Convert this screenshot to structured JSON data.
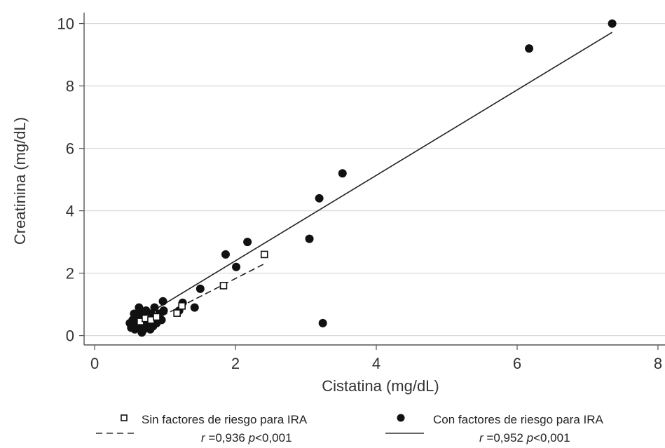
{
  "chart_data": {
    "type": "scatter",
    "xlabel": "Cistatina (mg/dL)",
    "ylabel": "Creatinina (mg/dL)",
    "xlim": [
      -0.15,
      8.1
    ],
    "ylim": [
      -0.3,
      10.35
    ],
    "x_ticks": [
      0,
      2,
      4,
      6,
      8
    ],
    "y_ticks": [
      0,
      2,
      4,
      6,
      8,
      10
    ],
    "grid": "horizontal",
    "legend_position": "bottom",
    "series": [
      {
        "name": "Sin factores de riesgo para IRA",
        "marker": "open-square",
        "points": [
          [
            1.17,
            0.72
          ],
          [
            1.24,
            0.95
          ],
          [
            1.83,
            1.6
          ],
          [
            2.41,
            2.6
          ],
          [
            0.65,
            0.45
          ],
          [
            0.72,
            0.55
          ],
          [
            0.8,
            0.5
          ],
          [
            0.88,
            0.6
          ]
        ],
        "fit_line": {
          "style": "dashed",
          "x": [
            0.95,
            2.41
          ],
          "y": [
            0.62,
            2.3
          ]
        },
        "stat_r": "r",
        "stat_r_value": " =0,936 ",
        "stat_p": "p",
        "stat_p_value": "<0,001"
      },
      {
        "name": "Con factores de riesgo para IRA",
        "marker": "filled-circle",
        "points": [
          [
            7.35,
            10.0
          ],
          [
            6.17,
            9.2
          ],
          [
            3.52,
            5.2
          ],
          [
            3.19,
            4.4
          ],
          [
            3.05,
            3.1
          ],
          [
            3.24,
            0.4
          ],
          [
            2.17,
            3.0
          ],
          [
            2.01,
            2.2
          ],
          [
            1.86,
            2.6
          ],
          [
            1.5,
            1.5
          ],
          [
            1.42,
            0.9
          ],
          [
            1.25,
            1.05
          ],
          [
            1.2,
            0.8
          ],
          [
            0.97,
            1.1
          ],
          [
            0.98,
            0.8
          ],
          [
            0.95,
            0.5
          ],
          [
            0.9,
            0.6
          ],
          [
            0.85,
            0.9
          ],
          [
            0.83,
            0.3
          ],
          [
            0.8,
            0.7
          ],
          [
            0.79,
            0.2
          ],
          [
            0.77,
            0.6
          ],
          [
            0.75,
            0.45
          ],
          [
            0.73,
            0.8
          ],
          [
            0.72,
            0.35
          ],
          [
            0.7,
            0.65
          ],
          [
            0.68,
            0.5
          ],
          [
            0.67,
            0.1
          ],
          [
            0.66,
            0.3
          ],
          [
            0.65,
            0.75
          ],
          [
            0.63,
            0.9
          ],
          [
            0.62,
            0.55
          ],
          [
            0.6,
            0.4
          ],
          [
            0.58,
            0.6
          ],
          [
            0.57,
            0.2
          ],
          [
            0.56,
            0.7
          ],
          [
            0.55,
            0.35
          ],
          [
            0.54,
            0.5
          ],
          [
            0.52,
            0.25
          ],
          [
            0.5,
            0.4
          ],
          [
            0.88,
            0.4
          ],
          [
            0.92,
            0.7
          ],
          [
            0.7,
            0.2
          ],
          [
            0.6,
            0.3
          ],
          [
            0.86,
            0.55
          ],
          [
            0.74,
            0.25
          ],
          [
            0.64,
            0.6
          ],
          [
            0.78,
            0.45
          ],
          [
            0.69,
            0.4
          ],
          [
            0.81,
            0.65
          ]
        ],
        "fit_line": {
          "style": "solid",
          "x": [
            0.65,
            7.35
          ],
          "y": [
            0.55,
            9.72
          ]
        },
        "stat_r": "r",
        "stat_r_value": " =0,952 ",
        "stat_p": "p",
        "stat_p_value": "<0,001"
      }
    ]
  },
  "colors": {
    "marker": "#111111",
    "grid": "#d9d9d9",
    "axis": "#555555",
    "open_square_fill": "#ffffff"
  }
}
